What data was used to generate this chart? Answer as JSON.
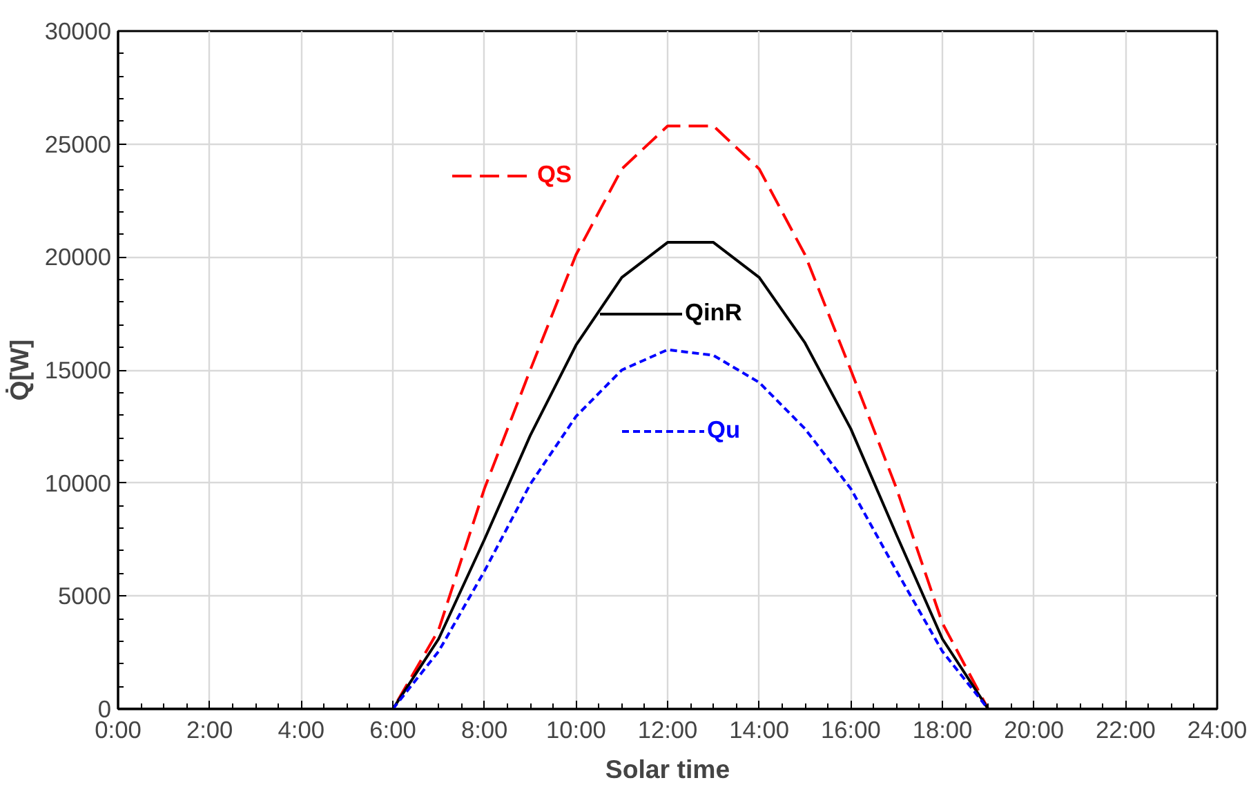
{
  "chart_data": {
    "type": "line",
    "xlabel": "Solar time",
    "ylabel": "Q̇[W]",
    "x": [
      0,
      1,
      2,
      3,
      4,
      5,
      6,
      7,
      8,
      9,
      10,
      11,
      12,
      13,
      14,
      15,
      16,
      17,
      18,
      19,
      20,
      21,
      22,
      23,
      24
    ],
    "series": [
      {
        "name": "QS",
        "color": "#ff0000",
        "line_style": "dashed",
        "values": [
          null,
          null,
          null,
          null,
          null,
          0,
          0,
          3500,
          9750,
          15000,
          20100,
          23900,
          25800,
          25800,
          23900,
          20100,
          15000,
          9750,
          3800,
          0,
          0,
          null,
          null,
          null,
          null
        ]
      },
      {
        "name": "QinR",
        "color": "#000000",
        "line_style": "solid",
        "values": [
          0,
          0,
          0,
          0,
          0,
          0,
          0,
          3100,
          7500,
          12100,
          16100,
          19100,
          20650,
          20650,
          19100,
          16200,
          12400,
          7700,
          3100,
          0,
          0,
          0,
          0,
          0,
          0
        ]
      },
      {
        "name": "Qu",
        "color": "#0000ff",
        "line_style": "dotted",
        "values": [
          null,
          null,
          null,
          null,
          null,
          null,
          0,
          2550,
          6100,
          9950,
          12950,
          15000,
          15900,
          15650,
          14450,
          12400,
          9750,
          6100,
          2550,
          0,
          null,
          null,
          null,
          null,
          null
        ]
      }
    ],
    "xlim": [
      0,
      24
    ],
    "xticks": [
      {
        "value": 0,
        "label": "0:00"
      },
      {
        "value": 2,
        "label": "2:00"
      },
      {
        "value": 4,
        "label": "4:00"
      },
      {
        "value": 6,
        "label": "6:00"
      },
      {
        "value": 8,
        "label": "8:00"
      },
      {
        "value": 10,
        "label": "10:00"
      },
      {
        "value": 12,
        "label": "12:00"
      },
      {
        "value": 14,
        "label": "14:00"
      },
      {
        "value": 16,
        "label": "16:00"
      },
      {
        "value": 18,
        "label": "18:00"
      },
      {
        "value": 20,
        "label": "20:00"
      },
      {
        "value": 22,
        "label": "22:00"
      },
      {
        "value": 24,
        "label": "24:00"
      }
    ],
    "ylim": [
      0,
      30000
    ],
    "yticks": [
      0,
      5000,
      10000,
      15000,
      20000,
      25000,
      30000
    ],
    "grid": true,
    "legend": "center"
  }
}
